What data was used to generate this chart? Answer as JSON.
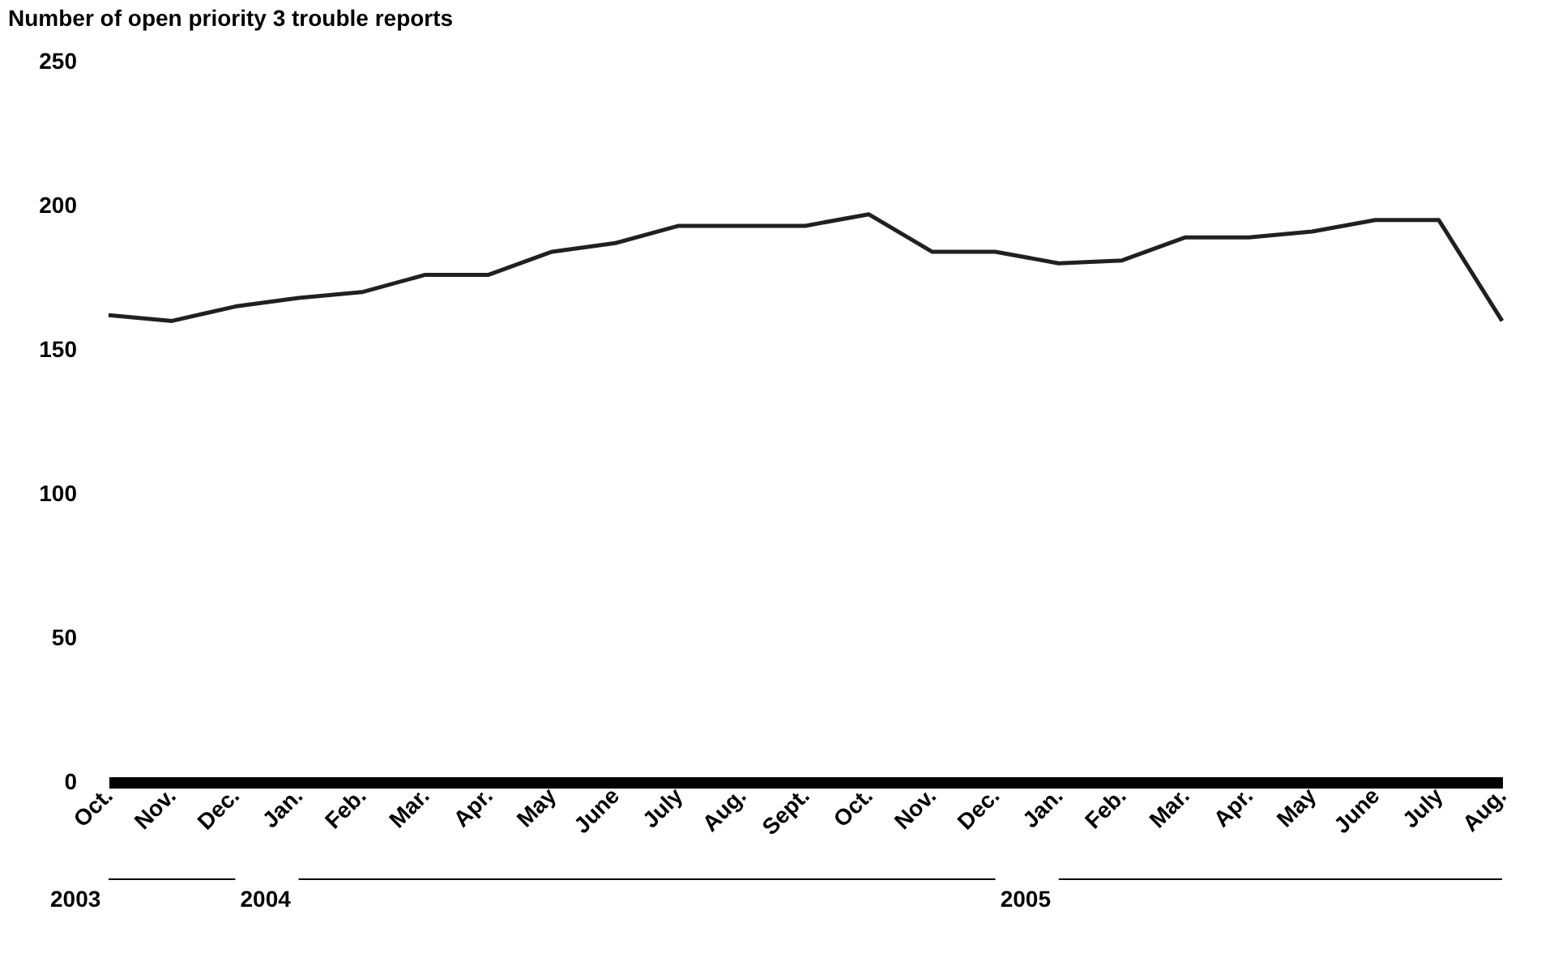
{
  "chart_data": {
    "type": "line",
    "title": "Number of open priority 3 trouble reports",
    "categories": [
      "Oct.",
      "Nov.",
      "Dec.",
      "Jan.",
      "Feb.",
      "Mar.",
      "Apr.",
      "May",
      "June",
      "July",
      "Aug.",
      "Sept.",
      "Oct.",
      "Nov.",
      "Dec.",
      "Jan.",
      "Feb.",
      "Mar.",
      "Apr.",
      "May",
      "June",
      "July",
      "Aug."
    ],
    "values": [
      162,
      160,
      165,
      168,
      170,
      176,
      176,
      184,
      187,
      193,
      193,
      193,
      197,
      184,
      184,
      180,
      181,
      189,
      189,
      191,
      195,
      195,
      160
    ],
    "color": "#231f20",
    "ylim": [
      0,
      250
    ],
    "yticks": [
      0,
      50,
      100,
      150,
      200,
      250
    ],
    "grid": false,
    "annotations": [
      "2003",
      "2004",
      "2005"
    ]
  }
}
